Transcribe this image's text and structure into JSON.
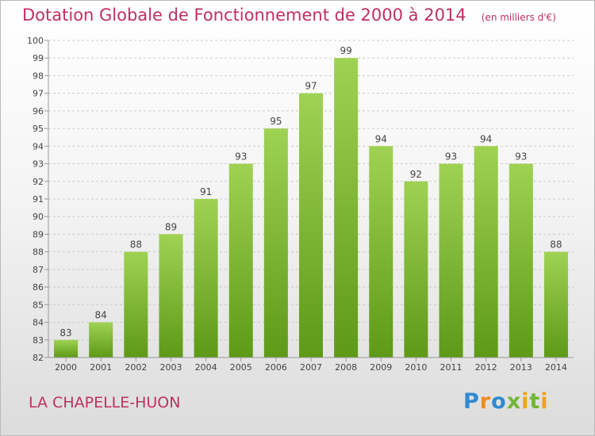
{
  "title": "Dotation Globale de Fonctionnement de 2000 à 2014",
  "subtitle": "(en milliers d'€)",
  "commune": "LA CHAPELLE-HUON",
  "logo": "Proxiti",
  "colors": {
    "accent": "#c0305e",
    "bar_top": "#9fd253",
    "bar_bottom": "#5d9a16",
    "grid": "#cccccc"
  },
  "chart_data": {
    "type": "bar",
    "categories": [
      "2000",
      "2001",
      "2002",
      "2003",
      "2004",
      "2005",
      "2006",
      "2007",
      "2008",
      "2009",
      "2010",
      "2011",
      "2012",
      "2013",
      "2014"
    ],
    "values": [
      83,
      84,
      88,
      89,
      91,
      93,
      95,
      97,
      99,
      94,
      92,
      93,
      94,
      93,
      88
    ],
    "title": "Dotation Globale de Fonctionnement de 2000 à 2014",
    "ylim": [
      82,
      100
    ],
    "yticks": [
      82,
      83,
      84,
      85,
      86,
      87,
      88,
      89,
      90,
      91,
      92,
      93,
      94,
      95,
      96,
      97,
      98,
      99,
      100
    ],
    "grid": true,
    "data_labels": true
  }
}
